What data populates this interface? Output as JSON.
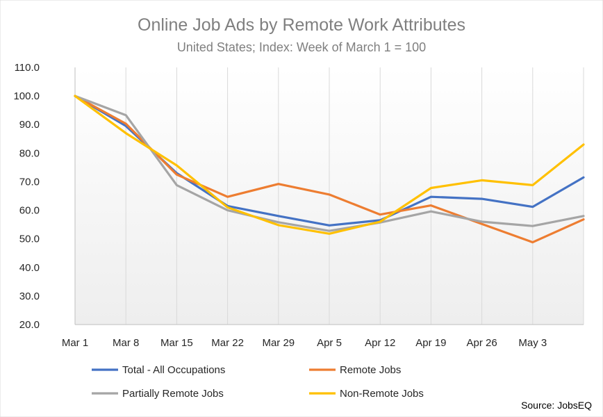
{
  "chart_data": {
    "type": "line",
    "title": "Online Job Ads by Remote Work Attributes",
    "subtitle": "United States; Index: Week of March 1 = 100",
    "xlabel": "",
    "ylabel": "",
    "categories": [
      "Mar 1",
      "Mar 8",
      "Mar 15",
      "Mar 22",
      "Mar 29",
      "Apr 5",
      "Apr 12",
      "Apr 19",
      "Apr 26",
      "May 3",
      ""
    ],
    "y_ticks": [
      "20.0",
      "30.0",
      "40.0",
      "50.0",
      "60.0",
      "70.0",
      "80.0",
      "90.0",
      "100.0",
      "110.0"
    ],
    "ylim": [
      20,
      110
    ],
    "grid": "vertical",
    "legend_position": "bottom",
    "series": [
      {
        "name": "Total - All Occupations",
        "color": "#4472c4",
        "values": [
          100,
          89.5,
          73.0,
          61.5,
          58.0,
          54.7,
          56.5,
          64.7,
          64.0,
          61.2,
          71.5
        ]
      },
      {
        "name": "Remote Jobs",
        "color": "#ed7d31",
        "values": [
          100,
          90.3,
          72.5,
          64.7,
          69.2,
          65.5,
          58.5,
          61.7,
          55.2,
          48.8,
          56.8
        ]
      },
      {
        "name": "Partially Remote Jobs",
        "color": "#a5a5a5",
        "values": [
          100,
          93.3,
          68.8,
          60.0,
          55.8,
          52.8,
          55.7,
          59.6,
          56.0,
          54.5,
          58.0
        ]
      },
      {
        "name": "Non-Remote Jobs",
        "color": "#ffc000",
        "values": [
          100,
          87.0,
          75.7,
          61.0,
          54.8,
          51.8,
          56.0,
          67.8,
          70.5,
          68.8,
          83.0
        ]
      }
    ],
    "source": "Source: JobsEQ"
  }
}
